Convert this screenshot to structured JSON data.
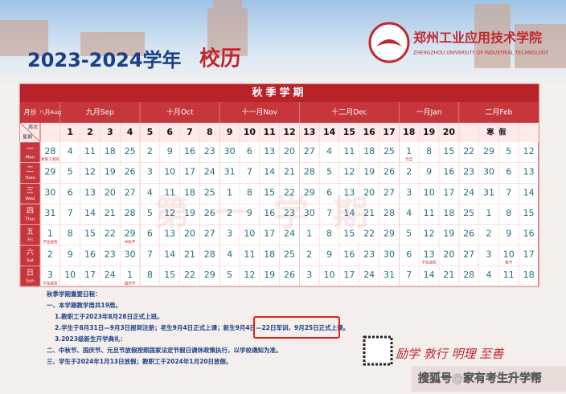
{
  "header": {
    "year": "2023-2024学年",
    "title": "校历",
    "school_name": "郑州工业应用技术学院",
    "school_name_en": "ZHENGZHOU UNIVERSITY OF INDUSTRIAL TECHNOLOGY"
  },
  "calendar": {
    "term": "秋季学期",
    "month_label": "月份",
    "week_label": "周次",
    "weekday_label": "星期",
    "months": [
      "八月Aug",
      "九月Sep",
      "十月Oct",
      "十一月Nov",
      "十二月Dec",
      "一月Jan",
      "二月Feb"
    ],
    "weeks": [
      1,
      2,
      3,
      4,
      5,
      6,
      7,
      8,
      9,
      10,
      11,
      12,
      13,
      14,
      15,
      16,
      17,
      18,
      19,
      20
    ],
    "break_label": "寒假",
    "watermark": "第一学期",
    "days": [
      {
        "label": "一",
        "en": "Mon",
        "dates": [
          28,
          4,
          11,
          18,
          25,
          2,
          9,
          16,
          23,
          30,
          6,
          13,
          20,
          27,
          4,
          11,
          18,
          25,
          1,
          8,
          15,
          22,
          29,
          5,
          12
        ],
        "marks": {
          "0": "教职工到岗",
          "18": "元旦"
        }
      },
      {
        "label": "二",
        "en": "Tues",
        "dates": [
          29,
          5,
          12,
          19,
          26,
          3,
          10,
          17,
          24,
          31,
          7,
          14,
          21,
          28,
          5,
          12,
          19,
          26,
          2,
          9,
          16,
          23,
          30,
          6,
          13
        ],
        "marks": {}
      },
      {
        "label": "三",
        "en": "Wed",
        "dates": [
          30,
          6,
          13,
          20,
          27,
          4,
          11,
          18,
          25,
          1,
          8,
          15,
          22,
          29,
          6,
          13,
          20,
          27,
          3,
          10,
          17,
          24,
          31,
          7,
          14
        ],
        "marks": {}
      },
      {
        "label": "四",
        "en": "Thur",
        "dates": [
          31,
          7,
          14,
          21,
          28,
          5,
          12,
          19,
          26,
          2,
          9,
          16,
          23,
          30,
          7,
          14,
          21,
          28,
          4,
          11,
          18,
          25,
          1,
          8,
          15
        ],
        "marks": {}
      },
      {
        "label": "五",
        "en": "Fri",
        "dates": [
          1,
          8,
          15,
          22,
          29,
          6,
          13,
          20,
          27,
          3,
          10,
          17,
          24,
          1,
          8,
          15,
          22,
          29,
          5,
          12,
          19,
          26,
          2,
          9,
          16
        ],
        "marks": {
          "0": "学生报到",
          "4": "中秋节"
        }
      },
      {
        "label": "六",
        "en": "Sat",
        "dates": [
          2,
          9,
          16,
          23,
          30,
          7,
          14,
          21,
          28,
          4,
          11,
          18,
          25,
          2,
          9,
          16,
          23,
          30,
          6,
          13,
          20,
          27,
          3,
          10,
          17
        ],
        "marks": {
          "19": "学生放假",
          "23": "春节"
        }
      },
      {
        "label": "日",
        "en": "Sun",
        "dates": [
          3,
          10,
          17,
          24,
          1,
          8,
          15,
          22,
          29,
          5,
          12,
          19,
          26,
          3,
          10,
          17,
          24,
          31,
          7,
          14,
          21,
          28,
          4,
          11,
          18
        ],
        "marks": {
          "0": "学生报到",
          "4": "国庆节"
        }
      }
    ]
  },
  "notes": {
    "heading": "秋季学期重要日程：",
    "line1": "一、本学期教学周共19周。",
    "line2": "1.教职工于2023年8月28日正式上班。",
    "line3a": "2.学生于8月31日—9月3日报到注册；老生9月4日正式上课；",
    "line3b": "新生9月4日—22日军训，",
    "line3c": "9月25日正式上课。",
    "line4": "3.2023级新生开学典礼：",
    "line5": "二、中秋节、国庆节、元旦节放假按照国家法定节假日调休政策执行，以学校通知为准。",
    "line6": "三、学生于2024年1月13日放假；教职工于2024年1月20日放假。"
  },
  "motto": "励学 敦行 明理 至善",
  "footer_watermark": "搜狐号@家有考生升学帮"
}
